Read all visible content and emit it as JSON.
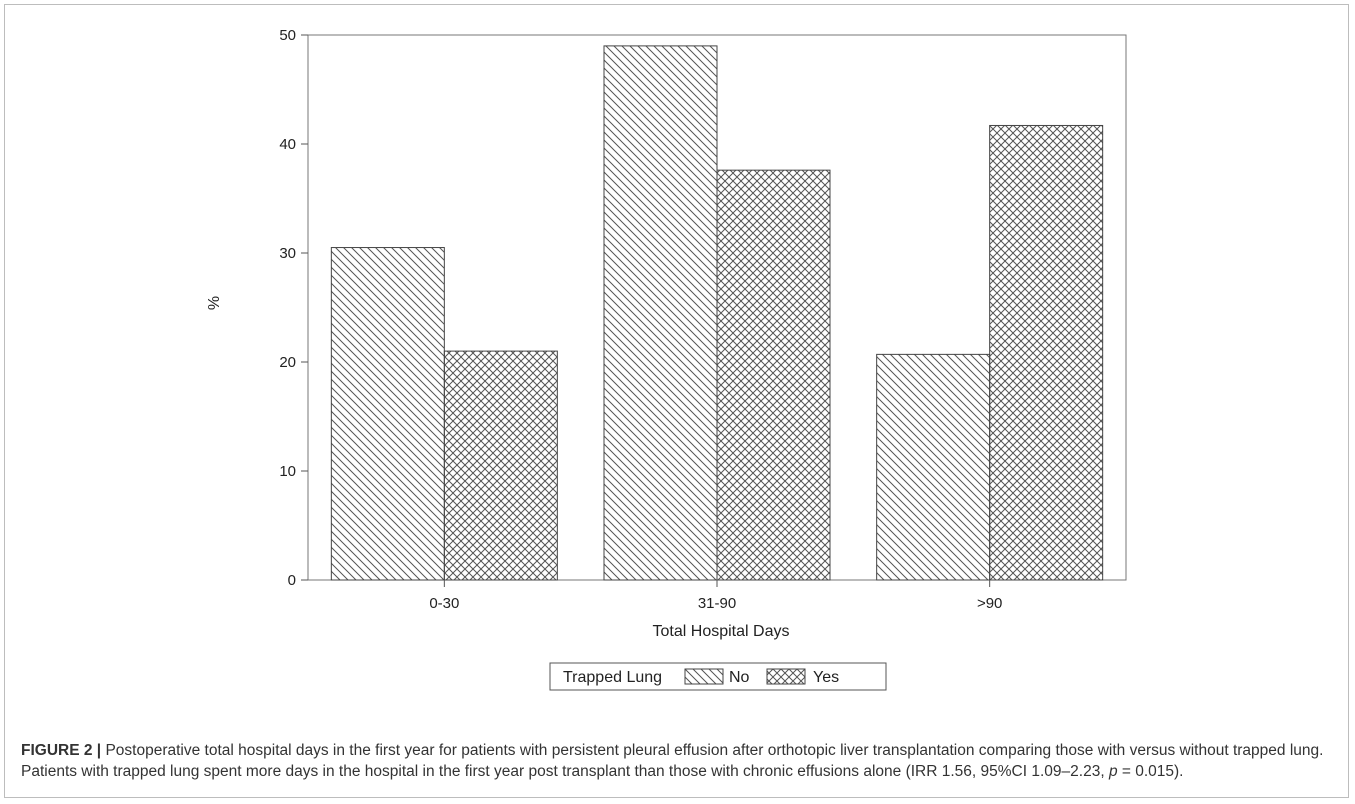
{
  "chart_data": {
    "type": "bar",
    "categories": [
      "0-30",
      "31-90",
      ">90"
    ],
    "series": [
      {
        "name": "No",
        "values": [
          30.5,
          49.0,
          20.7
        ],
        "pattern": "diagonal-hatch"
      },
      {
        "name": "Yes",
        "values": [
          21.0,
          37.6,
          41.7
        ],
        "pattern": "crosshatch"
      }
    ],
    "xlabel": "Total Hospital Days",
    "ylabel": "%",
    "ylim": [
      0,
      50
    ],
    "yticks": [
      "0",
      "10",
      "20",
      "30",
      "40",
      "50"
    ],
    "legend": {
      "title": "Trapped Lung",
      "placement": "bottom-center"
    },
    "grid": false,
    "colors": {
      "stroke": "#444444",
      "hatch": "#555555",
      "background": "#ffffff"
    }
  },
  "caption": {
    "label": "FIGURE 2 |",
    "text_before_p": " Postoperative total hospital days in the first year for patients with persistent pleural effusion after orthotopic liver transplantation comparing those with versus without trapped lung. Patients with trapped lung spent more days in the hospital in the first year post transplant than those with chronic effusions alone (IRR 1.56, 95%CI 1.09–2.23, ",
    "p_symbol": "p",
    "text_after_p": " = 0.015)."
  }
}
